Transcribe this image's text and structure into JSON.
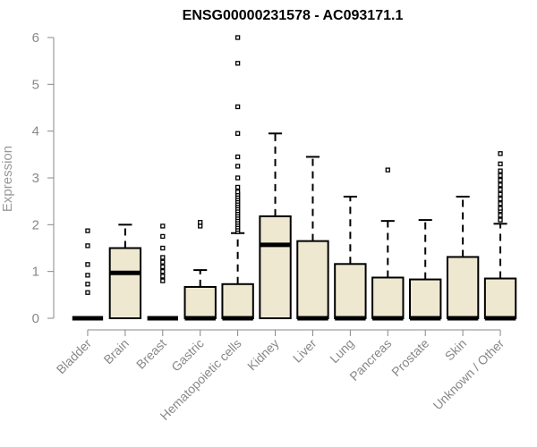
{
  "chart_data": {
    "type": "boxplot",
    "title": "ENSG00000231578 - AC093171.1",
    "xlabel": "",
    "ylabel": "Expression",
    "ylim": [
      0,
      6
    ],
    "yticks": [
      0,
      1,
      2,
      3,
      4,
      5,
      6
    ],
    "grid": false,
    "colors": {
      "box_fill": "#efe8d0",
      "stroke": "#000000",
      "axis": "#888888"
    },
    "categories": [
      "Bladder",
      "Brain",
      "Breast",
      "Gastric",
      "Hematopoietic cells",
      "Kidney",
      "Liver",
      "Lung",
      "Pancreas",
      "Prostate",
      "Skin",
      "Unknown / Other"
    ],
    "boxes": [
      {
        "q1": 0,
        "median": 0,
        "q3": 0,
        "whisker_low": 0,
        "whisker_high": 0,
        "outliers": [
          0.55,
          0.73,
          0.92,
          1.15,
          1.55,
          1.87
        ]
      },
      {
        "q1": 0,
        "median": 0.97,
        "q3": 1.5,
        "whisker_low": 0,
        "whisker_high": 2.0,
        "outliers": []
      },
      {
        "q1": 0,
        "median": 0,
        "q3": 0,
        "whisker_low": 0,
        "whisker_high": 0,
        "outliers": [
          0.8,
          0.9,
          1.0,
          1.1,
          1.2,
          1.3,
          1.5,
          1.75,
          1.97
        ]
      },
      {
        "q1": 0,
        "median": 0,
        "q3": 0.67,
        "whisker_low": 0,
        "whisker_high": 1.03,
        "outliers": [
          1.97,
          2.05
        ]
      },
      {
        "q1": 0,
        "median": 0,
        "q3": 0.73,
        "whisker_low": 0,
        "whisker_high": 1.82,
        "outliers": [
          1.85,
          1.9,
          1.95,
          2.0,
          2.05,
          2.1,
          2.15,
          2.2,
          2.25,
          2.3,
          2.35,
          2.4,
          2.45,
          2.5,
          2.55,
          2.6,
          2.65,
          2.7,
          2.8,
          3.0,
          3.25,
          3.45,
          3.95,
          4.52,
          5.45,
          6.0
        ]
      },
      {
        "q1": 0,
        "median": 1.57,
        "q3": 2.18,
        "whisker_low": 0,
        "whisker_high": 3.95,
        "outliers": []
      },
      {
        "q1": 0,
        "median": 0,
        "q3": 1.65,
        "whisker_low": 0,
        "whisker_high": 3.45,
        "outliers": []
      },
      {
        "q1": 0,
        "median": 0,
        "q3": 1.16,
        "whisker_low": 0,
        "whisker_high": 2.6,
        "outliers": []
      },
      {
        "q1": 0,
        "median": 0,
        "q3": 0.87,
        "whisker_low": 0,
        "whisker_high": 2.08,
        "outliers": [
          3.17
        ]
      },
      {
        "q1": 0,
        "median": 0,
        "q3": 0.83,
        "whisker_low": 0,
        "whisker_high": 2.1,
        "outliers": []
      },
      {
        "q1": 0,
        "median": 0,
        "q3": 1.31,
        "whisker_low": 0,
        "whisker_high": 2.6,
        "outliers": []
      },
      {
        "q1": 0,
        "median": 0,
        "q3": 0.85,
        "whisker_low": 0,
        "whisker_high": 2.02,
        "outliers": [
          2.1,
          2.2,
          2.3,
          2.35,
          2.45,
          2.55,
          2.65,
          2.75,
          2.85,
          2.95,
          3.05,
          3.15,
          3.3,
          3.52
        ]
      }
    ]
  }
}
